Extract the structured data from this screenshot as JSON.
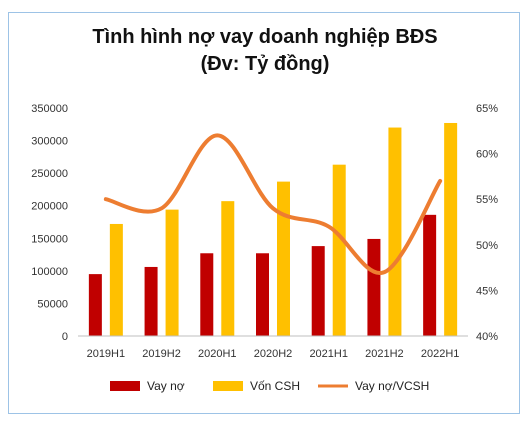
{
  "chart_data": {
    "type": "bar",
    "title_line1": "Tình hình nợ vay doanh nghiệp BĐS",
    "title_line2": "(Đv: Tỷ đồng)",
    "categories": [
      "2019H1",
      "2019H2",
      "2020H1",
      "2020H2",
      "2021H1",
      "2021H2",
      "2022H1"
    ],
    "series": [
      {
        "name": "Vay nợ",
        "kind": "bar",
        "axis": "left",
        "color": "#c00000",
        "values": [
          95000,
          106000,
          127000,
          127000,
          138000,
          149000,
          186000
        ]
      },
      {
        "name": "Vốn CSH",
        "kind": "bar",
        "axis": "left",
        "color": "#ffc000",
        "values": [
          172000,
          194000,
          207000,
          237000,
          263000,
          320000,
          327000
        ]
      },
      {
        "name": "Vay nợ/VCSH",
        "kind": "line",
        "axis": "right",
        "color": "#ed7d31",
        "values": [
          55,
          54,
          62,
          54,
          52,
          47,
          57
        ]
      }
    ],
    "y_left": {
      "min": 0,
      "max": 350000,
      "ticks": [
        "0",
        "50000",
        "100000",
        "150000",
        "200000",
        "250000",
        "300000",
        "350000"
      ]
    },
    "y_right": {
      "min": 40,
      "max": 65,
      "ticks": [
        "40%",
        "45%",
        "50%",
        "55%",
        "60%",
        "65%"
      ]
    },
    "grid": false,
    "legend_position": "bottom"
  }
}
